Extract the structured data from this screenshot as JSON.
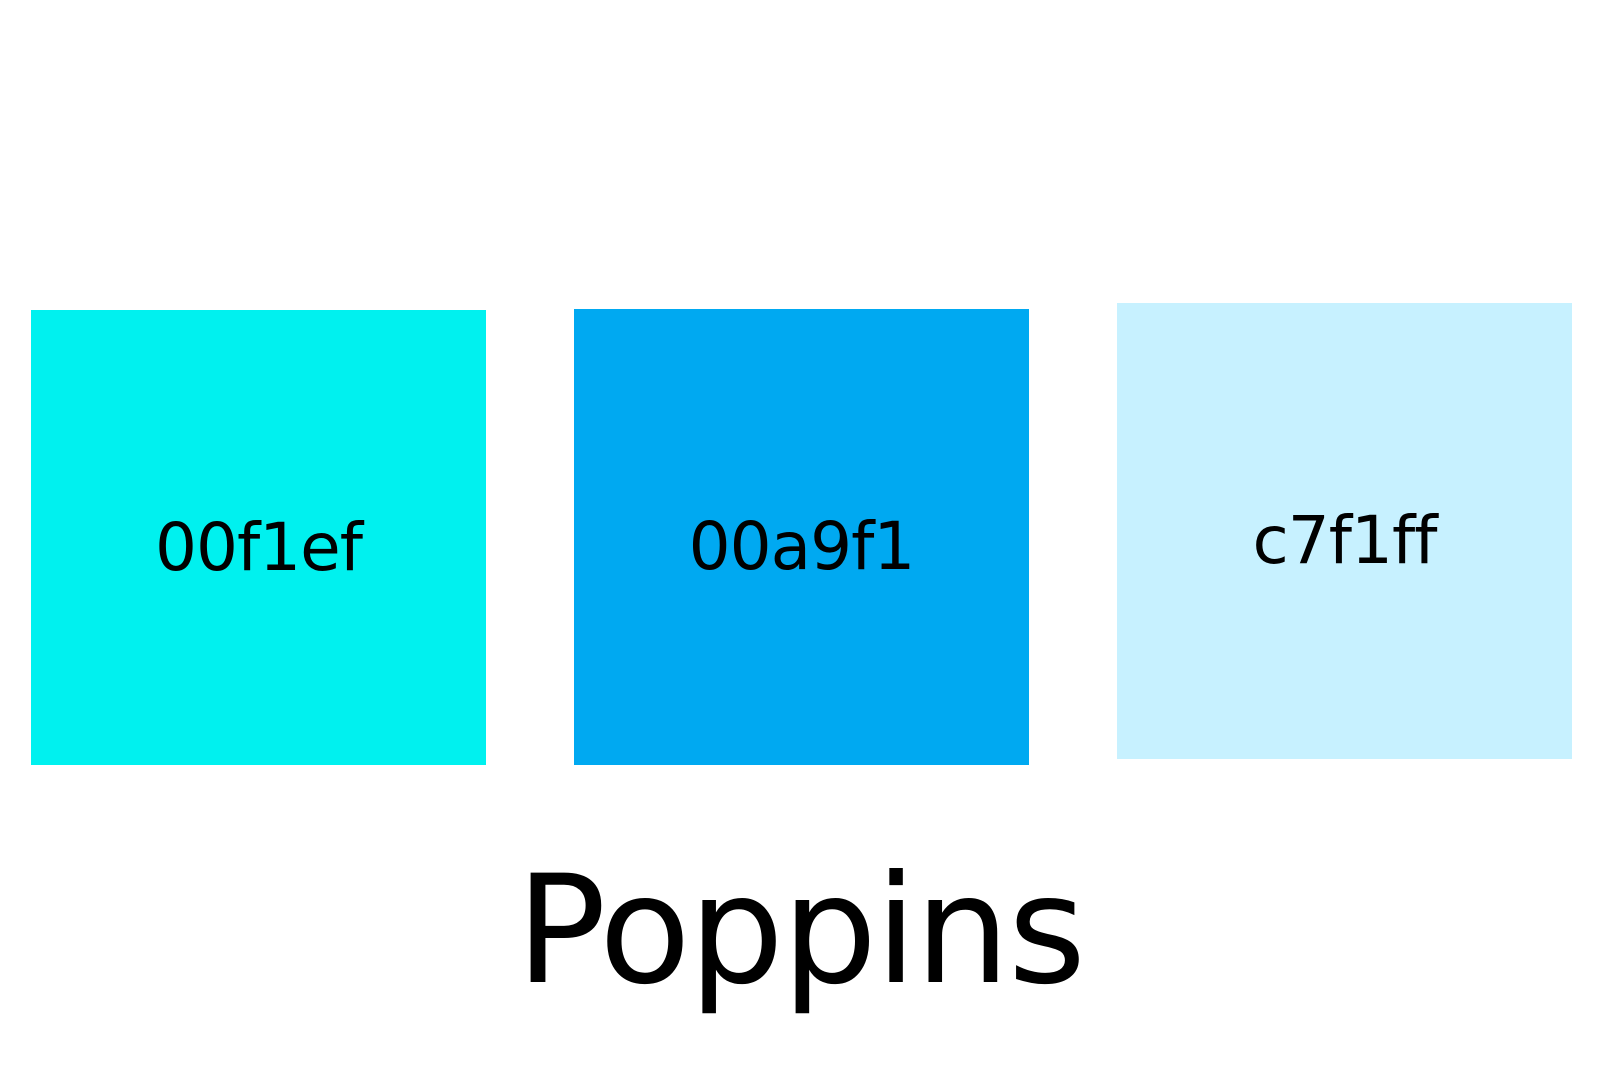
{
  "swatches": [
    {
      "label": "00f1ef",
      "color": "#00f1ef"
    },
    {
      "label": "00a9f1",
      "color": "#00a9f1"
    },
    {
      "label": "c7f1ff",
      "color": "#c7f1ff"
    }
  ],
  "font_name": "Poppins"
}
